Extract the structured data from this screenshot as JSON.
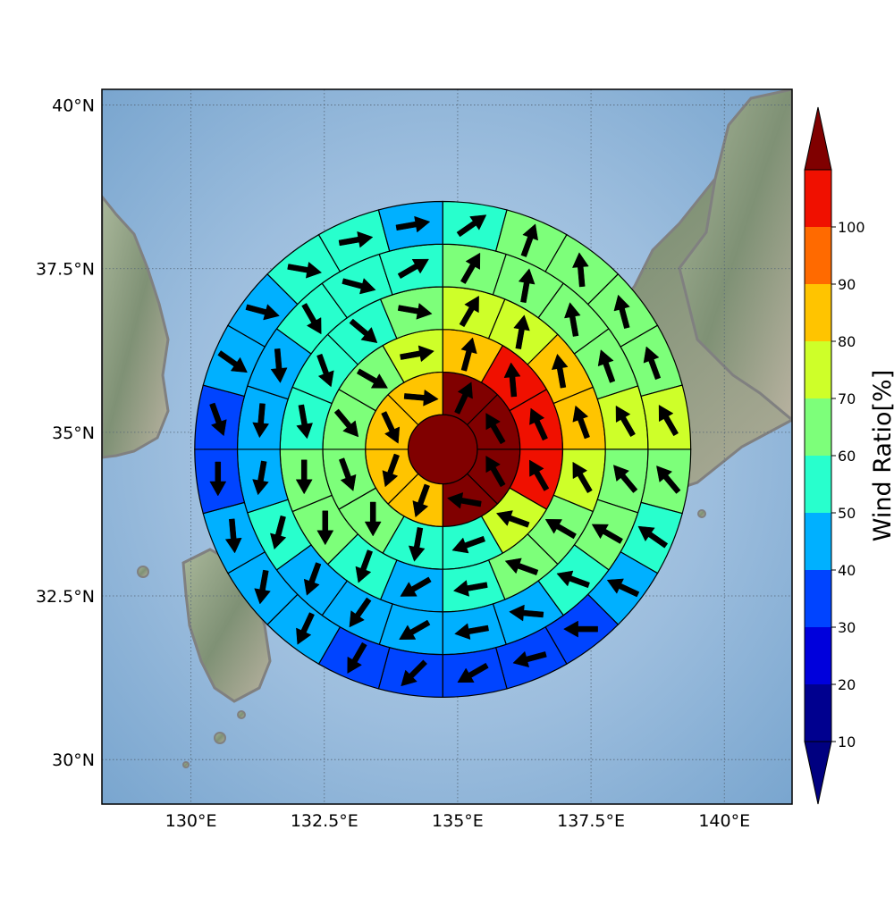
{
  "map": {
    "lat_labels": [
      {
        "lat": 40.0,
        "text": "40°N"
      },
      {
        "lat": 37.5,
        "text": "37.5°N"
      },
      {
        "lat": 35.0,
        "text": "35°N"
      },
      {
        "lat": 32.5,
        "text": "32.5°N"
      },
      {
        "lat": 30.0,
        "text": "30°N"
      }
    ],
    "lon_labels": [
      {
        "lon": 130.0,
        "text": "130°E"
      },
      {
        "lon": 132.5,
        "text": "132.5°E"
      },
      {
        "lon": 135.0,
        "text": "135°E"
      },
      {
        "lon": 137.5,
        "text": "137.5°E"
      },
      {
        "lon": 140.0,
        "text": "140°E"
      }
    ],
    "extent": {
      "lon_min": 128.33,
      "lon_max": 141.27,
      "lat_min": 29.32,
      "lat_max": 40.24
    },
    "center": {
      "lon": 134.72,
      "lat": 34.74
    },
    "ring_edges_deg": [
      0.65,
      1.45,
      2.25,
      3.05,
      3.85,
      4.65
    ],
    "colors": {
      "ocean": "#8fb3d6",
      "land": "#8a9a7a",
      "coastline": "#808080",
      "grid": "#556677"
    }
  },
  "colorbar": {
    "label": "Wind Ratio[%]",
    "ticks": [
      "10",
      "20",
      "30",
      "40",
      "50",
      "60",
      "70",
      "80",
      "90",
      "100"
    ],
    "bins": [
      {
        "from": 0,
        "to": 10,
        "color": "#00008f"
      },
      {
        "from": 10,
        "to": 20,
        "color": "#0000dc"
      },
      {
        "from": 20,
        "to": 30,
        "color": "#0044ff"
      },
      {
        "from": 30,
        "to": 40,
        "color": "#00b0ff"
      },
      {
        "from": 40,
        "to": 50,
        "color": "#28ffcd"
      },
      {
        "from": 50,
        "to": 60,
        "color": "#7dff7a"
      },
      {
        "from": 60,
        "to": 70,
        "color": "#ceff29"
      },
      {
        "from": 70,
        "to": 80,
        "color": "#ffc400"
      },
      {
        "from": 80,
        "to": 90,
        "color": "#ff6a00"
      },
      {
        "from": 90,
        "to": 100,
        "color": "#f01000"
      }
    ],
    "extend_low": "#000080",
    "extend_high": "#800000"
  },
  "wind_rings": [
    {
      "ring": 0,
      "sectors": [
        {
          "ratio": 100,
          "dir": null
        }
      ]
    },
    {
      "ring": 1,
      "sectors": [
        {
          "ratio": 100,
          "dir": 25
        },
        {
          "ratio": 100,
          "dir": 330
        },
        {
          "ratio": 100,
          "dir": 330
        },
        {
          "ratio": 100,
          "dir": 280
        },
        {
          "ratio": 75,
          "dir": 200
        },
        {
          "ratio": 75,
          "dir": 200
        },
        {
          "ratio": 75,
          "dir": 155
        },
        {
          "ratio": 75,
          "dir": 95
        }
      ]
    },
    {
      "ring": 2,
      "sectors": [
        {
          "ratio": 75,
          "dir": 15
        },
        {
          "ratio": 95,
          "dir": 355
        },
        {
          "ratio": 95,
          "dir": 335
        },
        {
          "ratio": 95,
          "dir": 330
        },
        {
          "ratio": 65,
          "dir": 290
        },
        {
          "ratio": 45,
          "dir": 250
        },
        {
          "ratio": 45,
          "dir": 190
        },
        {
          "ratio": 55,
          "dir": 180
        },
        {
          "ratio": 55,
          "dir": 160
        },
        {
          "ratio": 55,
          "dir": 140
        },
        {
          "ratio": 55,
          "dir": 120
        },
        {
          "ratio": 65,
          "dir": 80
        }
      ]
    },
    {
      "ring": 3,
      "sectors": [
        {
          "ratio": 65,
          "dir": 30
        },
        {
          "ratio": 65,
          "dir": 10
        },
        {
          "ratio": 75,
          "dir": 350
        },
        {
          "ratio": 75,
          "dir": 340
        },
        {
          "ratio": 65,
          "dir": 330
        },
        {
          "ratio": 55,
          "dir": 300
        },
        {
          "ratio": 55,
          "dir": 290
        },
        {
          "ratio": 45,
          "dir": 260
        },
        {
          "ratio": 35,
          "dir": 240
        },
        {
          "ratio": 45,
          "dir": 200
        },
        {
          "ratio": 55,
          "dir": 180
        },
        {
          "ratio": 55,
          "dir": 180
        },
        {
          "ratio": 45,
          "dir": 170
        },
        {
          "ratio": 45,
          "dir": 160
        },
        {
          "ratio": 45,
          "dir": 130
        },
        {
          "ratio": 55,
          "dir": 100
        }
      ]
    },
    {
      "ring": 4,
      "sectors": [
        {
          "ratio": 55,
          "dir": 30
        },
        {
          "ratio": 55,
          "dir": 10
        },
        {
          "ratio": 55,
          "dir": 350
        },
        {
          "ratio": 55,
          "dir": 340
        },
        {
          "ratio": 65,
          "dir": 330
        },
        {
          "ratio": 55,
          "dir": 320
        },
        {
          "ratio": 55,
          "dir": 300
        },
        {
          "ratio": 45,
          "dir": 290
        },
        {
          "ratio": 35,
          "dir": 275
        },
        {
          "ratio": 35,
          "dir": 260
        },
        {
          "ratio": 35,
          "dir": 240
        },
        {
          "ratio": 35,
          "dir": 215
        },
        {
          "ratio": 35,
          "dir": 200
        },
        {
          "ratio": 45,
          "dir": 195
        },
        {
          "ratio": 35,
          "dir": 190
        },
        {
          "ratio": 35,
          "dir": 185
        },
        {
          "ratio": 35,
          "dir": 175
        },
        {
          "ratio": 45,
          "dir": 150
        },
        {
          "ratio": 45,
          "dir": 105
        },
        {
          "ratio": 45,
          "dir": 60
        }
      ]
    },
    {
      "ring": 5,
      "sectors": [
        {
          "ratio": 45,
          "dir": 55
        },
        {
          "ratio": 55,
          "dir": 20
        },
        {
          "ratio": 55,
          "dir": 355
        },
        {
          "ratio": 55,
          "dir": 345
        },
        {
          "ratio": 55,
          "dir": 340
        },
        {
          "ratio": 65,
          "dir": 330
        },
        {
          "ratio": 55,
          "dir": 320
        },
        {
          "ratio": 45,
          "dir": 305
        },
        {
          "ratio": 35,
          "dir": 295
        },
        {
          "ratio": 25,
          "dir": 270
        },
        {
          "ratio": 25,
          "dir": 255
        },
        {
          "ratio": 25,
          "dir": 240
        },
        {
          "ratio": 25,
          "dir": 225
        },
        {
          "ratio": 25,
          "dir": 210
        },
        {
          "ratio": 35,
          "dir": 205
        },
        {
          "ratio": 35,
          "dir": 190
        },
        {
          "ratio": 35,
          "dir": 175
        },
        {
          "ratio": 25,
          "dir": 180
        },
        {
          "ratio": 25,
          "dir": 160
        },
        {
          "ratio": 35,
          "dir": 125
        },
        {
          "ratio": 35,
          "dir": 105
        },
        {
          "ratio": 45,
          "dir": 100
        },
        {
          "ratio": 45,
          "dir": 80
        },
        {
          "ratio": 35,
          "dir": 80
        }
      ]
    }
  ]
}
